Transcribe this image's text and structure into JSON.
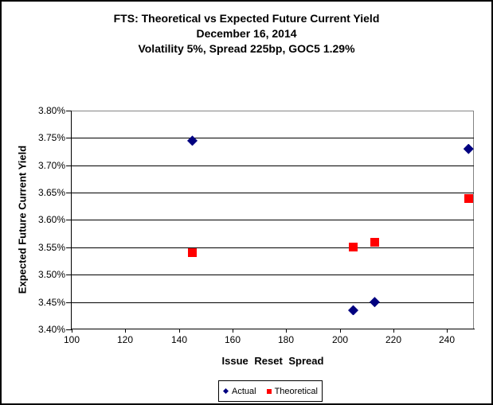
{
  "chart_data": {
    "type": "scatter",
    "title": "FTS: Theoretical vs Expected Future Current Yield",
    "subtitle1": "December 16, 2014",
    "subtitle2": "Volatility 5%, Spread 225bp, GOC5 1.29%",
    "xlabel": "Issue Reset Spread",
    "ylabel": "Expected Future Current Yield",
    "xlim": [
      100,
      250
    ],
    "ylim": [
      3.4,
      3.8
    ],
    "x_ticks": [
      100,
      120,
      140,
      160,
      180,
      200,
      220,
      240
    ],
    "y_ticks": [
      3.4,
      3.45,
      3.5,
      3.55,
      3.6,
      3.65,
      3.7,
      3.75,
      3.8
    ],
    "y_tick_suffix": "%",
    "grid": "horizontal-major",
    "legend_position": "bottom-center",
    "plot_border_color": "#848484",
    "grid_color": "#000000",
    "series": [
      {
        "name": "Actual",
        "marker": "diamond",
        "color": "#000080",
        "points": [
          [
            145,
            3.745
          ],
          [
            205,
            3.435
          ],
          [
            213,
            3.45
          ],
          [
            248,
            3.73
          ]
        ]
      },
      {
        "name": "Theoretical",
        "marker": "square",
        "color": "#FF0000",
        "points": [
          [
            145,
            3.54
          ],
          [
            205,
            3.55
          ],
          [
            213,
            3.56
          ],
          [
            248,
            3.64
          ]
        ]
      }
    ]
  }
}
